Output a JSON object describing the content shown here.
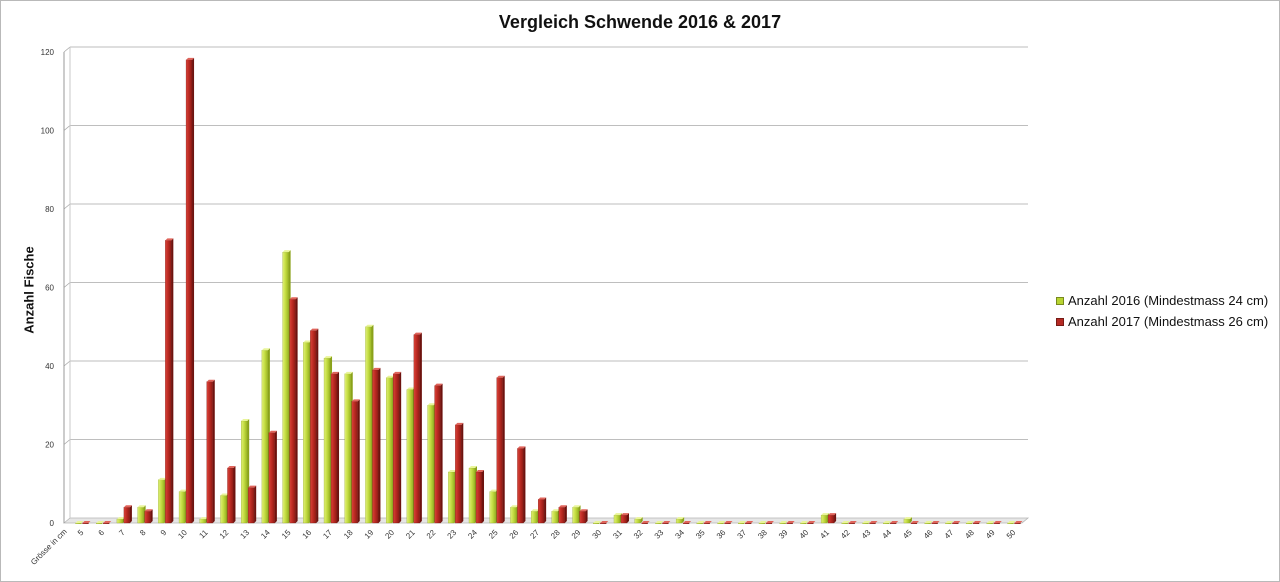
{
  "chart_data": {
    "type": "bar",
    "title": "Vergleich Schwende 2016 & 2017",
    "xlabel": "Grösse in cm",
    "ylabel": "Anzahl Fische",
    "ylim": [
      0,
      120
    ],
    "yticks": [
      0,
      20,
      40,
      60,
      80,
      100,
      120
    ],
    "grid": true,
    "legend_position": "right",
    "categories": [
      "5",
      "6",
      "7",
      "8",
      "9",
      "10",
      "11",
      "12",
      "13",
      "14",
      "15",
      "16",
      "17",
      "18",
      "19",
      "20",
      "21",
      "22",
      "23",
      "24",
      "25",
      "26",
      "27",
      "28",
      "29",
      "30",
      "31",
      "32",
      "33",
      "34",
      "35",
      "36",
      "37",
      "38",
      "39",
      "40",
      "41",
      "42",
      "43",
      "44",
      "45",
      "46",
      "47",
      "48",
      "49",
      "50"
    ],
    "series": [
      {
        "name": "Anzahl 2016 (Mindestmass 24 cm)",
        "color": "#b8d431",
        "values": [
          0,
          0,
          1,
          4,
          11,
          8,
          1,
          7,
          26,
          44,
          69,
          46,
          42,
          38,
          50,
          37,
          34,
          30,
          13,
          14,
          8,
          4,
          3,
          3,
          4,
          0,
          2,
          1,
          0,
          1,
          0,
          0,
          0,
          0,
          0,
          0,
          2,
          0,
          0,
          0,
          1,
          0,
          0,
          0,
          0,
          0
        ]
      },
      {
        "name": "Anzahl 2017 (Mindestmass 26 cm)",
        "color": "#b52a23",
        "values": [
          0,
          0,
          4,
          3,
          72,
          118,
          36,
          14,
          9,
          23,
          57,
          49,
          38,
          31,
          39,
          38,
          48,
          35,
          25,
          13,
          37,
          19,
          6,
          4,
          3,
          0,
          2,
          0,
          0,
          0,
          0,
          0,
          0,
          0,
          0,
          0,
          2,
          0,
          0,
          0,
          0,
          0,
          0,
          0,
          0,
          0
        ]
      }
    ]
  }
}
